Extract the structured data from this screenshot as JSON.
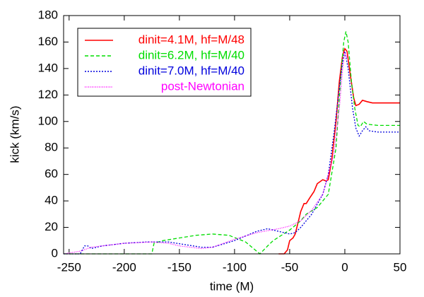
{
  "chart_data": {
    "type": "line",
    "xlabel": "time (M)",
    "ylabel": "kick (km/s)",
    "xlim": [
      -255,
      50
    ],
    "xticks": [
      -250,
      -200,
      -150,
      -100,
      -50,
      0,
      50
    ],
    "ylim": [
      0,
      180
    ],
    "yticks": [
      0,
      20,
      40,
      60,
      80,
      100,
      120,
      140,
      160,
      180
    ],
    "legend": "upper-left",
    "series": [
      {
        "name": "dinit=4.1M, hf=M/48",
        "color": "#ff0000",
        "style": "solid",
        "x": [
          -60,
          -55,
          -52,
          -50,
          -47,
          -45,
          -42,
          -40,
          -37,
          -35,
          -32,
          -28,
          -25,
          -20,
          -17,
          -15,
          -12,
          -8,
          -5,
          -2,
          0,
          2,
          5,
          8,
          10,
          13,
          16,
          20,
          25,
          30,
          40,
          50
        ],
        "values": [
          0,
          0,
          3,
          10,
          12,
          15,
          25,
          32,
          38,
          38,
          42,
          47,
          53,
          56,
          55,
          56,
          70,
          100,
          130,
          150,
          155,
          153,
          135,
          118,
          112,
          113,
          116,
          115,
          114,
          114,
          114,
          114
        ]
      },
      {
        "name": "dinit=6.2M, hf=M/40",
        "color": "#00dd00",
        "style": "dashed",
        "x": [
          -255,
          -175,
          -173,
          -165,
          -150,
          -135,
          -120,
          -105,
          -90,
          -77,
          -70,
          -65,
          -50,
          -40,
          -35,
          -25,
          -15,
          -8,
          -4,
          -1,
          1,
          3,
          6,
          9,
          12,
          14,
          17,
          20,
          30,
          50
        ],
        "values": [
          0,
          0,
          8,
          10,
          12,
          14,
          15,
          14,
          9,
          0,
          6,
          10,
          18,
          25,
          30,
          35,
          45,
          80,
          130,
          160,
          168,
          160,
          130,
          110,
          97,
          96,
          100,
          98,
          97,
          97
        ]
      },
      {
        "name": "dinit=7.0M, hf=M/40",
        "color": "#0000dd",
        "style": "dotted",
        "x": [
          -255,
          -240,
          -236,
          -233,
          -230,
          -220,
          -200,
          -180,
          -160,
          -145,
          -130,
          -120,
          -100,
          -80,
          -70,
          -60,
          -50,
          -45,
          -40,
          -30,
          -20,
          -15,
          -10,
          -5,
          -2,
          0,
          3,
          7,
          10,
          13,
          16,
          19,
          22,
          30,
          50
        ],
        "values": [
          0,
          0,
          6,
          6,
          4,
          6,
          8,
          9,
          9,
          7,
          5,
          5,
          10,
          17,
          19,
          17,
          15,
          16,
          20,
          30,
          45,
          60,
          90,
          125,
          145,
          153,
          140,
          110,
          95,
          89,
          93,
          96,
          93,
          92,
          92
        ]
      },
      {
        "name": "post-Newtonian",
        "color": "#ff00ff",
        "style": "fine",
        "x": [
          -255,
          -240,
          -230,
          -200,
          -175,
          -160,
          -150,
          -130,
          -120,
          -100,
          -80,
          -60,
          -50,
          -40,
          -30,
          -20,
          -10,
          -5,
          -2,
          0,
          2
        ],
        "values": [
          0,
          2,
          5,
          8,
          9,
          8,
          6,
          4,
          5,
          11,
          16,
          19,
          21,
          25,
          33,
          45,
          75,
          110,
          140,
          152,
          148
        ]
      }
    ]
  }
}
